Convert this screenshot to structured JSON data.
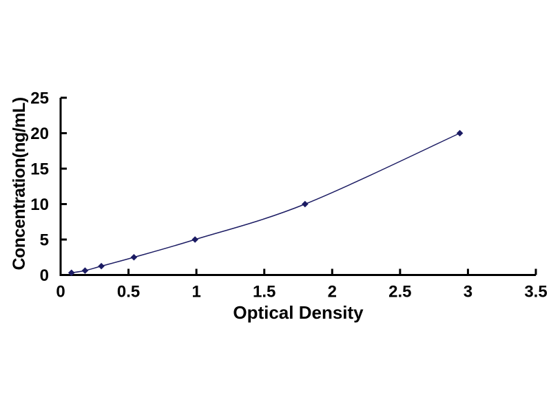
{
  "chart_data": {
    "type": "scatter",
    "title": "",
    "xlabel": "Optical Density",
    "ylabel": "Concentration(ng/mL)",
    "xlim": [
      0,
      3.5
    ],
    "ylim": [
      0,
      25
    ],
    "x_ticks": [
      0,
      0.5,
      1,
      1.5,
      2,
      2.5,
      3,
      3.5
    ],
    "x_tick_labels": [
      "0",
      "0.5",
      "1",
      "1.5",
      "2",
      "2.5",
      "3",
      "3.5"
    ],
    "y_ticks": [
      0,
      5,
      10,
      15,
      20,
      25
    ],
    "y_tick_labels": [
      "0",
      "5",
      "10",
      "15",
      "20",
      "25"
    ],
    "grid": false,
    "legend": false,
    "axis_color": "#000000",
    "text_color": "#000000",
    "series": [
      {
        "name": "standard-curve",
        "marker": "diamond",
        "line_style": "smooth",
        "color": "#1b1b63",
        "x": [
          0.08,
          0.18,
          0.3,
          0.54,
          0.99,
          1.8,
          2.94
        ],
        "y": [
          0.31,
          0.62,
          1.25,
          2.5,
          5,
          10,
          20
        ]
      }
    ]
  }
}
